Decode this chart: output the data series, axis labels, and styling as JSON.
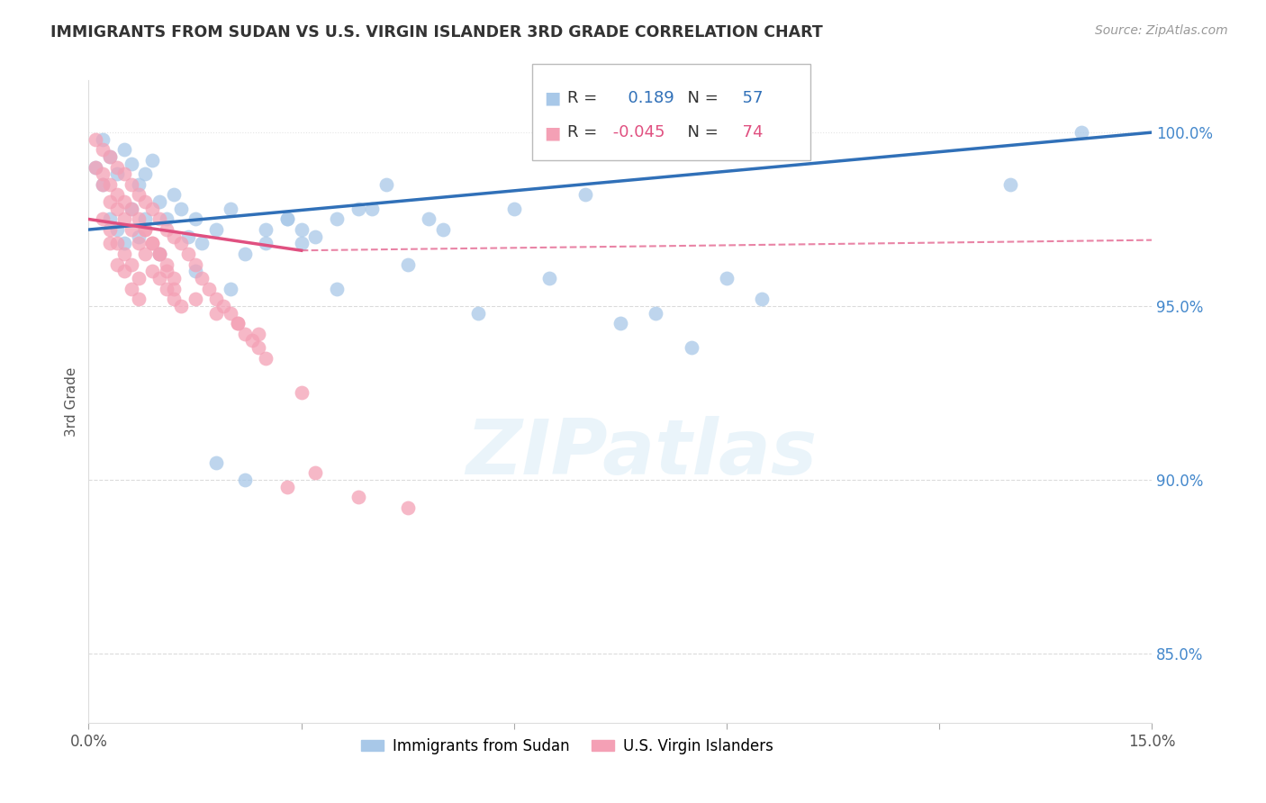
{
  "title": "IMMIGRANTS FROM SUDAN VS U.S. VIRGIN ISLANDER 3RD GRADE CORRELATION CHART",
  "source": "Source: ZipAtlas.com",
  "ylabel": "3rd Grade",
  "xlim": [
    0.0,
    0.15
  ],
  "ylim": [
    0.83,
    1.015
  ],
  "yticks": [
    0.85,
    0.9,
    0.95,
    1.0
  ],
  "ytick_labels": [
    "85.0%",
    "90.0%",
    "95.0%",
    "100.0%"
  ],
  "blue_color": "#a8c8e8",
  "pink_color": "#f4a0b5",
  "blue_line_color": "#3070b8",
  "pink_line_color": "#e05080",
  "R_blue": 0.189,
  "N_blue": 57,
  "R_pink": -0.045,
  "N_pink": 74,
  "blue_scatter_x": [
    0.001,
    0.002,
    0.002,
    0.003,
    0.003,
    0.004,
    0.004,
    0.005,
    0.005,
    0.006,
    0.006,
    0.007,
    0.007,
    0.008,
    0.008,
    0.009,
    0.01,
    0.01,
    0.011,
    0.012,
    0.013,
    0.014,
    0.015,
    0.016,
    0.018,
    0.02,
    0.022,
    0.025,
    0.028,
    0.03,
    0.015,
    0.02,
    0.025,
    0.03,
    0.035,
    0.04,
    0.05,
    0.06,
    0.07,
    0.08,
    0.09,
    0.13,
    0.14,
    0.035,
    0.045,
    0.055,
    0.065,
    0.075,
    0.085,
    0.095,
    0.018,
    0.022,
    0.028,
    0.032,
    0.038,
    0.042,
    0.048
  ],
  "blue_scatter_y": [
    0.99,
    0.998,
    0.985,
    0.993,
    0.975,
    0.988,
    0.972,
    0.995,
    0.968,
    0.991,
    0.978,
    0.985,
    0.97,
    0.988,
    0.975,
    0.992,
    0.98,
    0.965,
    0.975,
    0.982,
    0.978,
    0.97,
    0.975,
    0.968,
    0.972,
    0.978,
    0.965,
    0.972,
    0.975,
    0.968,
    0.96,
    0.955,
    0.968,
    0.972,
    0.975,
    0.978,
    0.972,
    0.978,
    0.982,
    0.948,
    0.958,
    0.985,
    1.0,
    0.955,
    0.962,
    0.948,
    0.958,
    0.945,
    0.938,
    0.952,
    0.905,
    0.9,
    0.975,
    0.97,
    0.978,
    0.985,
    0.975
  ],
  "pink_scatter_x": [
    0.001,
    0.001,
    0.002,
    0.002,
    0.002,
    0.003,
    0.003,
    0.003,
    0.004,
    0.004,
    0.004,
    0.005,
    0.005,
    0.005,
    0.006,
    0.006,
    0.006,
    0.007,
    0.007,
    0.007,
    0.008,
    0.008,
    0.009,
    0.009,
    0.01,
    0.01,
    0.011,
    0.011,
    0.012,
    0.012,
    0.013,
    0.014,
    0.015,
    0.016,
    0.017,
    0.018,
    0.019,
    0.02,
    0.021,
    0.022,
    0.023,
    0.024,
    0.025,
    0.003,
    0.004,
    0.005,
    0.006,
    0.007,
    0.008,
    0.009,
    0.01,
    0.011,
    0.012,
    0.013,
    0.002,
    0.003,
    0.004,
    0.005,
    0.006,
    0.007,
    0.008,
    0.009,
    0.01,
    0.011,
    0.012,
    0.015,
    0.018,
    0.021,
    0.024,
    0.028,
    0.032,
    0.038,
    0.045,
    0.03
  ],
  "pink_scatter_y": [
    0.998,
    0.99,
    0.995,
    0.985,
    0.975,
    0.993,
    0.98,
    0.968,
    0.99,
    0.978,
    0.962,
    0.988,
    0.975,
    0.96,
    0.985,
    0.972,
    0.955,
    0.982,
    0.968,
    0.952,
    0.98,
    0.965,
    0.978,
    0.96,
    0.975,
    0.958,
    0.972,
    0.955,
    0.97,
    0.952,
    0.968,
    0.965,
    0.962,
    0.958,
    0.955,
    0.952,
    0.95,
    0.948,
    0.945,
    0.942,
    0.94,
    0.938,
    0.935,
    0.972,
    0.968,
    0.965,
    0.962,
    0.958,
    0.972,
    0.968,
    0.965,
    0.96,
    0.955,
    0.95,
    0.988,
    0.985,
    0.982,
    0.98,
    0.978,
    0.975,
    0.972,
    0.968,
    0.965,
    0.962,
    0.958,
    0.952,
    0.948,
    0.945,
    0.942,
    0.898,
    0.902,
    0.895,
    0.892,
    0.925
  ],
  "watermark_text": "ZIPatlas",
  "background_color": "#ffffff",
  "grid_color": "#cccccc",
  "top_grid_color": "#cccccc"
}
